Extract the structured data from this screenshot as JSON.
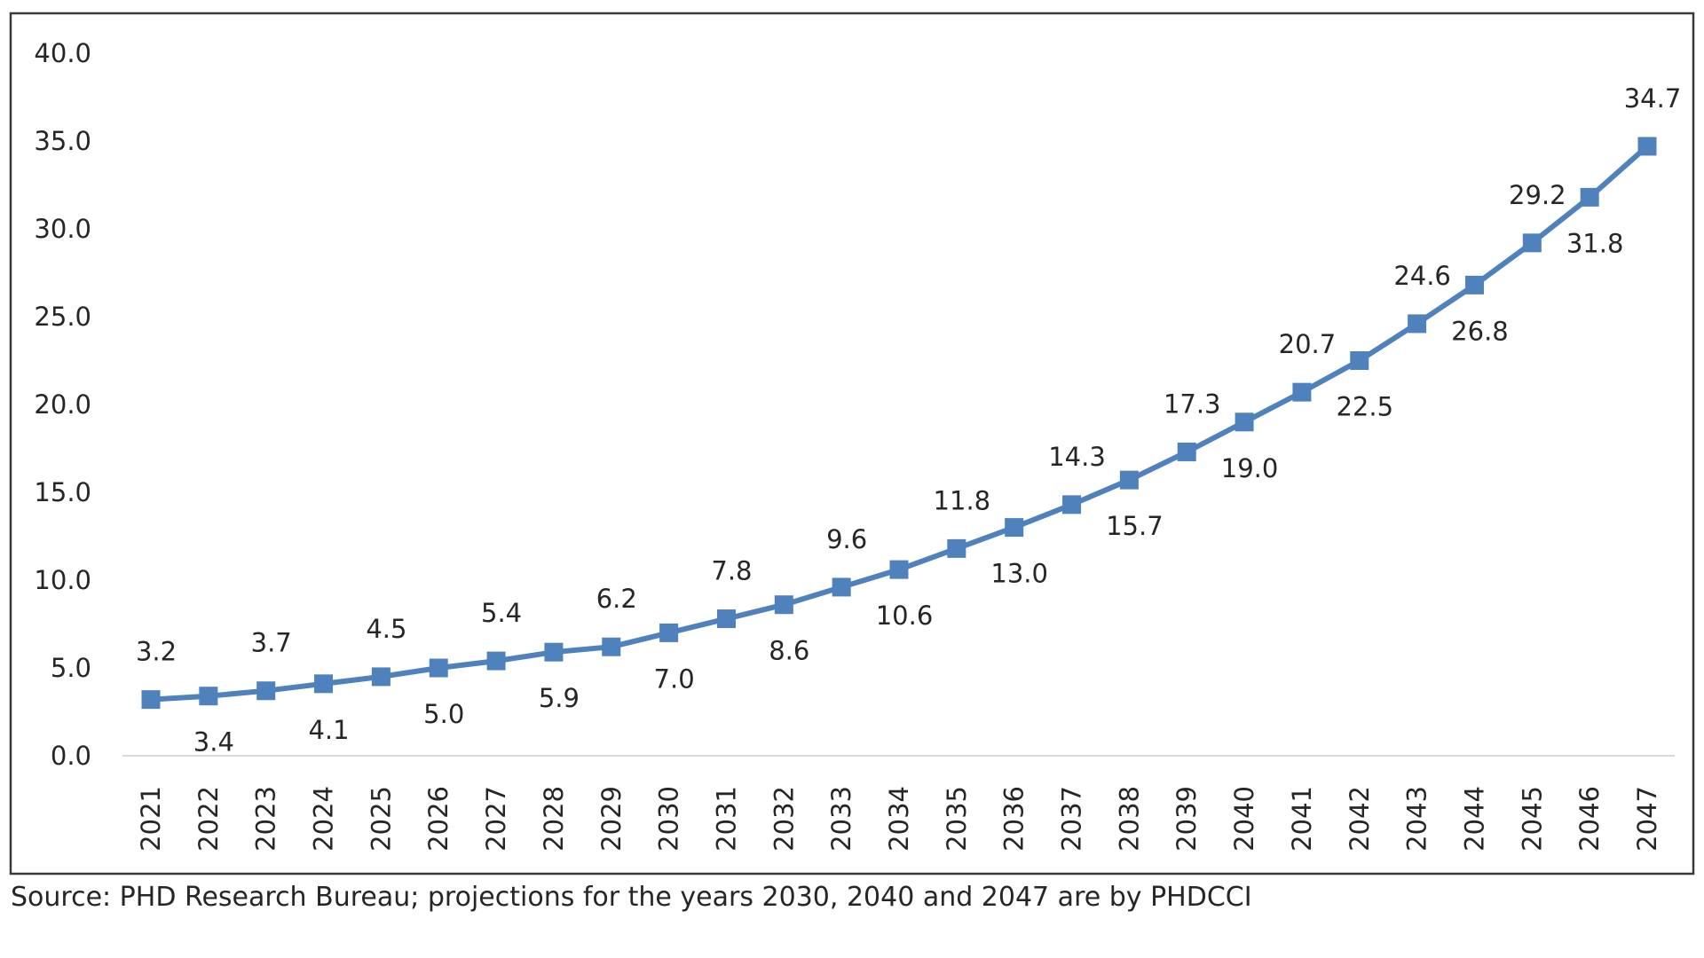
{
  "chart_data": {
    "type": "line",
    "title": "",
    "xlabel": "",
    "ylabel": "",
    "ylim": [
      0,
      40
    ],
    "yticks": [
      "0.0",
      "5.0",
      "10.0",
      "15.0",
      "20.0",
      "25.0",
      "30.0",
      "35.0",
      "40.0"
    ],
    "grid": false,
    "legend": "none",
    "categories": [
      "2021",
      "2022",
      "2023",
      "2024",
      "2025",
      "2026",
      "2027",
      "2028",
      "2029",
      "2030",
      "2031",
      "2032",
      "2033",
      "2034",
      "2035",
      "2036",
      "2037",
      "2038",
      "2039",
      "2040",
      "2041",
      "2042",
      "2043",
      "2044",
      "2045",
      "2046",
      "2047"
    ],
    "series": [
      {
        "name": "",
        "color": "#4F81BD",
        "values": [
          3.2,
          3.4,
          3.7,
          4.1,
          4.5,
          5.0,
          5.4,
          5.9,
          6.2,
          7.0,
          7.8,
          8.6,
          9.6,
          10.6,
          11.8,
          13.0,
          14.3,
          15.7,
          17.3,
          19.0,
          20.7,
          22.5,
          24.6,
          26.8,
          29.2,
          31.8,
          34.7
        ],
        "label_positions": [
          "above",
          "below",
          "above",
          "below",
          "above",
          "below",
          "above",
          "below",
          "above",
          "below",
          "above",
          "below",
          "above",
          "below",
          "above",
          "below",
          "above",
          "below",
          "above",
          "below",
          "above",
          "below",
          "above",
          "below",
          "above",
          "below",
          "above"
        ]
      }
    ],
    "data_labels": [
      "3.2",
      "3.4",
      "3.7",
      "4.1",
      "4.5",
      "5.0",
      "5.4",
      "5.9",
      "6.2",
      "7.0",
      "7.8",
      "8.6",
      "9.6",
      "10.6",
      "11.8",
      "13.0",
      "14.3",
      "15.7",
      "17.3",
      "19.0",
      "20.7",
      "22.5",
      "24.6",
      "26.8",
      "29.2",
      "31.8",
      "34.7"
    ]
  },
  "source": "Source: PHD Research Bureau; projections for the years 2030, 2040 and 2047 are by PHDCCI"
}
